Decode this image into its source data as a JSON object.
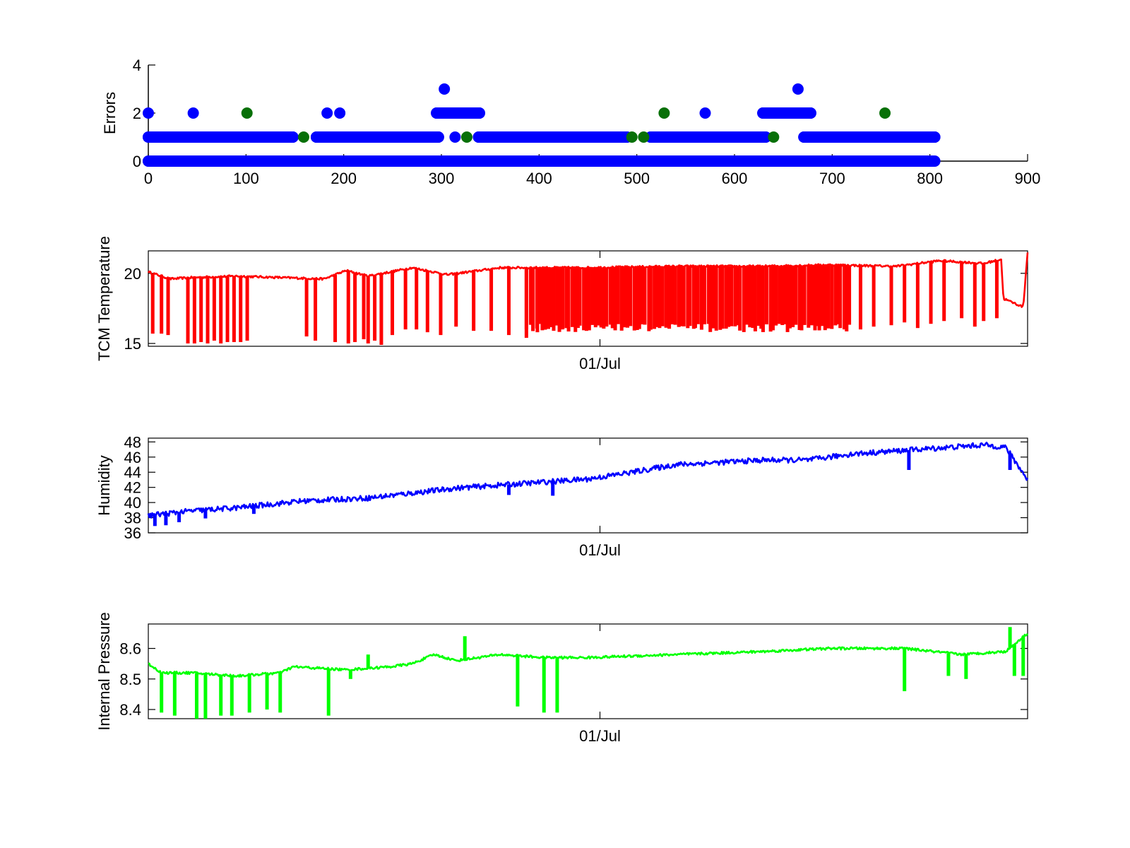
{
  "chart_data": [
    {
      "type": "scatter",
      "title": "",
      "xlabel": "",
      "ylabel": "Errors",
      "xlim": [
        0,
        900
      ],
      "ylim": [
        0,
        4
      ],
      "xticks": [
        0,
        100,
        200,
        300,
        400,
        500,
        600,
        700,
        800,
        900
      ],
      "yticks": [
        0,
        2,
        4
      ],
      "xtick_labels": [
        "0",
        "100",
        "200",
        "300",
        "400",
        "500",
        "600",
        "700",
        "800",
        "900"
      ],
      "ytick_labels": [
        "0",
        "2",
        "4"
      ],
      "series": [
        {
          "color": "#0000ff",
          "points": [
            [
              0,
              0
            ],
            [
              800,
              0
            ],
            [
              0,
              1
            ],
            [
              148,
              1
            ],
            [
              172,
              1
            ],
            [
              297,
              1
            ],
            [
              314,
              1
            ],
            [
              338,
              1
            ],
            [
              490,
              1
            ],
            [
              514,
              1
            ],
            [
              632,
              1
            ],
            [
              671,
              1
            ],
            [
              805,
              1
            ],
            [
              0,
              2
            ],
            [
              46,
              2
            ],
            [
              183,
              2
            ],
            [
              196,
              2
            ],
            [
              295,
              2
            ],
            [
              312,
              2
            ],
            [
              339,
              2
            ],
            [
              570,
              2
            ],
            [
              629,
              2
            ],
            [
              678,
              2
            ],
            [
              303,
              3
            ],
            [
              665,
              3
            ]
          ],
          "segments": [
            [
              0,
              805,
              0
            ],
            [
              0,
              148,
              1
            ],
            [
              172,
              297,
              1
            ],
            [
              338,
              490,
              1
            ],
            [
              514,
              632,
              1
            ],
            [
              671,
              805,
              1
            ],
            [
              295,
              312,
              2
            ],
            [
              312,
              339,
              2
            ],
            [
              629,
              678,
              2
            ]
          ]
        },
        {
          "color": "#087008",
          "points": [
            [
              101,
              2
            ],
            [
              159,
              1
            ],
            [
              326,
              1
            ],
            [
              495,
              1
            ],
            [
              507,
              1
            ],
            [
              528,
              2
            ],
            [
              640,
              1
            ],
            [
              754,
              2
            ]
          ]
        }
      ]
    },
    {
      "type": "line",
      "title": "",
      "xlabel": "",
      "ylabel": "TCM Temperature",
      "x": [
        "01/Jul"
      ],
      "ylim": [
        14.8,
        21.6
      ],
      "yticks": [
        15,
        20
      ],
      "ytick_labels": [
        "15",
        "20"
      ],
      "xtick_labels": [
        "01/Jul"
      ],
      "color": "#ff0000",
      "baseline": [
        [
          0,
          20.1
        ],
        [
          0.05,
          19.6
        ],
        [
          0.1,
          19.7
        ],
        [
          0.2,
          19.8
        ],
        [
          0.3,
          19.7
        ],
        [
          0.4,
          19.6
        ],
        [
          0.45,
          20.2
        ],
        [
          0.5,
          19.8
        ],
        [
          0.6,
          20.4
        ],
        [
          0.68,
          19.9
        ],
        [
          0.8,
          20.4
        ],
        [
          1.0,
          20.4
        ],
        [
          1.2,
          20.5
        ],
        [
          1.4,
          20.5
        ],
        [
          1.55,
          20.6
        ],
        [
          1.7,
          20.5
        ],
        [
          1.8,
          20.9
        ],
        [
          1.9,
          20.7
        ],
        [
          1.94,
          21.0
        ],
        [
          1.945,
          18.2
        ],
        [
          1.99,
          17.6
        ],
        [
          2.0,
          21.5
        ]
      ],
      "dips": [
        [
          0.01,
          15.7
        ],
        [
          0.03,
          15.7
        ],
        [
          0.045,
          15.6
        ],
        [
          0.09,
          15.0
        ],
        [
          0.105,
          15.0
        ],
        [
          0.12,
          15.1
        ],
        [
          0.135,
          15.0
        ],
        [
          0.15,
          15.2
        ],
        [
          0.165,
          15.0
        ],
        [
          0.18,
          15.1
        ],
        [
          0.195,
          15.1
        ],
        [
          0.21,
          15.1
        ],
        [
          0.225,
          15.2
        ],
        [
          0.36,
          15.5
        ],
        [
          0.38,
          15.2
        ],
        [
          0.425,
          15.1
        ],
        [
          0.455,
          15.0
        ],
        [
          0.47,
          15.1
        ],
        [
          0.49,
          15.3
        ],
        [
          0.5,
          15.0
        ],
        [
          0.515,
          15.2
        ],
        [
          0.53,
          14.9
        ],
        [
          0.555,
          15.6
        ],
        [
          0.585,
          16.0
        ],
        [
          0.61,
          16.0
        ],
        [
          0.635,
          15.8
        ],
        [
          0.665,
          15.6
        ],
        [
          0.7,
          16.2
        ],
        [
          0.74,
          15.9
        ],
        [
          0.78,
          15.9
        ],
        [
          0.82,
          15.6
        ],
        [
          0.86,
          15.4
        ],
        [
          0.885,
          15.8
        ],
        [
          0.9,
          16.1
        ],
        [
          0.94,
          16.0
        ]
      ],
      "dense_dips": [
        [
          0.86,
          1.6,
          15.8,
          16.4
        ]
      ],
      "late_dips": [
        [
          1.62,
          16.0
        ],
        [
          1.65,
          16.2
        ],
        [
          1.69,
          16.3
        ],
        [
          1.72,
          16.5
        ],
        [
          1.75,
          16.1
        ],
        [
          1.78,
          16.4
        ],
        [
          1.81,
          16.6
        ],
        [
          1.85,
          16.8
        ],
        [
          1.88,
          16.2
        ],
        [
          1.9,
          16.6
        ],
        [
          1.93,
          16.8
        ]
      ]
    },
    {
      "type": "line",
      "title": "",
      "xlabel": "",
      "ylabel": "Humidity",
      "ylim": [
        36,
        48.5
      ],
      "yticks": [
        36,
        38,
        40,
        42,
        44,
        46,
        48
      ],
      "ytick_labels": [
        "36",
        "38",
        "40",
        "42",
        "44",
        "46",
        "48"
      ],
      "xtick_labels": [
        "01/Jul"
      ],
      "color": "#0000ff",
      "trend": [
        [
          0,
          38.3
        ],
        [
          0.1,
          38.9
        ],
        [
          0.2,
          39.3
        ],
        [
          0.35,
          40.2
        ],
        [
          0.5,
          40.6
        ],
        [
          0.7,
          41.9
        ],
        [
          0.8,
          42.3
        ],
        [
          1.0,
          43.1
        ],
        [
          1.1,
          44.0
        ],
        [
          1.2,
          45.0
        ],
        [
          1.4,
          45.6
        ],
        [
          1.5,
          45.6
        ],
        [
          1.6,
          46.4
        ],
        [
          1.7,
          46.8
        ],
        [
          1.8,
          47.2
        ],
        [
          1.9,
          47.6
        ],
        [
          1.95,
          47.3
        ],
        [
          2.0,
          43.0
        ]
      ],
      "dips": [
        [
          0.015,
          36.9
        ],
        [
          0.04,
          37.0
        ],
        [
          0.07,
          37.4
        ],
        [
          0.13,
          37.9
        ],
        [
          0.24,
          38.5
        ],
        [
          0.82,
          41.0
        ],
        [
          0.92,
          40.9
        ],
        [
          1.73,
          44.3
        ],
        [
          1.96,
          44.3
        ]
      ]
    },
    {
      "type": "line",
      "title": "",
      "xlabel": "",
      "ylabel": "Internal Pressure",
      "ylim": [
        8.37,
        8.68
      ],
      "yticks": [
        8.4,
        8.5,
        8.6
      ],
      "ytick_labels": [
        "8.4",
        "8.5",
        "8.6"
      ],
      "xtick_labels": [
        "01/Jul"
      ],
      "color": "#00ff00",
      "baseline": [
        [
          0,
          8.55
        ],
        [
          0.03,
          8.52
        ],
        [
          0.1,
          8.52
        ],
        [
          0.2,
          8.51
        ],
        [
          0.3,
          8.52
        ],
        [
          0.33,
          8.54
        ],
        [
          0.45,
          8.53
        ],
        [
          0.55,
          8.54
        ],
        [
          0.6,
          8.55
        ],
        [
          0.65,
          8.58
        ],
        [
          0.7,
          8.56
        ],
        [
          0.8,
          8.58
        ],
        [
          0.9,
          8.57
        ],
        [
          1.0,
          8.57
        ],
        [
          1.2,
          8.58
        ],
        [
          1.4,
          8.59
        ],
        [
          1.55,
          8.6
        ],
        [
          1.65,
          8.6
        ],
        [
          1.72,
          8.6
        ],
        [
          1.85,
          8.58
        ],
        [
          1.95,
          8.59
        ],
        [
          2.0,
          8.65
        ]
      ],
      "dips": [
        [
          0.03,
          8.39
        ],
        [
          0.06,
          8.38
        ],
        [
          0.11,
          8.37
        ],
        [
          0.13,
          8.37
        ],
        [
          0.165,
          8.38
        ],
        [
          0.19,
          8.38
        ],
        [
          0.23,
          8.39
        ],
        [
          0.27,
          8.4
        ],
        [
          0.3,
          8.39
        ],
        [
          0.41,
          8.38
        ],
        [
          0.46,
          8.5
        ],
        [
          0.84,
          8.41
        ],
        [
          0.9,
          8.39
        ],
        [
          0.93,
          8.39
        ],
        [
          1.72,
          8.46
        ],
        [
          1.82,
          8.51
        ],
        [
          1.86,
          8.5
        ],
        [
          1.97,
          8.51
        ],
        [
          1.99,
          8.51
        ]
      ],
      "spikes": [
        [
          0.5,
          8.58
        ],
        [
          0.72,
          8.64
        ],
        [
          1.96,
          8.67
        ]
      ]
    }
  ]
}
